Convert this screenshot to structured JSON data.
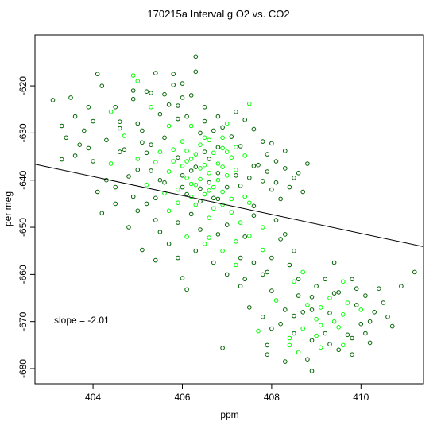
{
  "chart_data": {
    "type": "scatter",
    "title": "170215a   Interval g O2 vs. CO2",
    "xlabel": "ppm",
    "ylabel": "per meg",
    "xlim": [
      402.7,
      411.4
    ],
    "ylim": [
      -683.2,
      -609.2
    ],
    "x_ticks": [
      404,
      406,
      408,
      410
    ],
    "y_ticks": [
      -620,
      -630,
      -640,
      -650,
      -660,
      -670,
      -680
    ],
    "x_tick_labels": [
      "404",
      "406",
      "408",
      "410"
    ],
    "y_tick_labels": [
      "-620",
      "-630",
      "-640",
      "-650",
      "-660",
      "-670",
      "-680"
    ],
    "annotation": "slope =  -2.01",
    "fit_line": {
      "slope": -2.01,
      "intercept": 172.8
    },
    "grid": false,
    "legend": "none",
    "colors": {
      "dark": "#006400",
      "bright": "#00ff00",
      "line": "#000000"
    },
    "points": [
      [
        403.1,
        -623.0,
        0
      ],
      [
        403.3,
        -628.5,
        0
      ],
      [
        403.3,
        -635.6,
        0
      ],
      [
        403.5,
        -622.5,
        0
      ],
      [
        403.6,
        -634.8,
        0
      ],
      [
        403.7,
        -632.5,
        0
      ],
      [
        403.9,
        -633.2,
        0
      ],
      [
        404.0,
        -627.5,
        0
      ],
      [
        404.1,
        -617.5,
        0
      ],
      [
        404.3,
        -640.0,
        0
      ],
      [
        404.2,
        -647.0,
        0
      ],
      [
        404.5,
        -624.5,
        0
      ],
      [
        404.6,
        -627.6,
        0
      ],
      [
        404.7,
        -630.6,
        1
      ],
      [
        404.9,
        -617.8,
        1
      ],
      [
        404.9,
        -621.0,
        0
      ],
      [
        405.0,
        -628.0,
        0
      ],
      [
        405.1,
        -632.0,
        0
      ],
      [
        405.2,
        -621.2,
        0
      ],
      [
        405.3,
        -624.5,
        1
      ],
      [
        405.4,
        -617.3,
        0
      ],
      [
        405.5,
        -626.0,
        0
      ],
      [
        405.6,
        -621.8,
        0
      ],
      [
        405.7,
        -628.5,
        1
      ],
      [
        405.8,
        -619.8,
        0
      ],
      [
        405.9,
        -624.2,
        0
      ],
      [
        406.0,
        -622.5,
        0
      ],
      [
        406.1,
        -626.5,
        0
      ],
      [
        406.2,
        -628.5,
        1
      ],
      [
        406.3,
        -613.8,
        0
      ],
      [
        406.4,
        -630.0,
        0
      ],
      [
        406.5,
        -627.5,
        0
      ],
      [
        406.6,
        -631.5,
        1
      ],
      [
        406.7,
        -629.5,
        0
      ],
      [
        406.8,
        -633.0,
        0
      ],
      [
        406.9,
        -628.8,
        0
      ],
      [
        407.0,
        -634.0,
        1
      ],
      [
        407.1,
        -630.8,
        0
      ],
      [
        407.3,
        -632.8,
        0
      ],
      [
        407.4,
        -627.2,
        0
      ],
      [
        407.5,
        -623.8,
        1
      ],
      [
        407.6,
        -629.2,
        0
      ],
      [
        407.8,
        -631.8,
        0
      ],
      [
        407.9,
        -634.5,
        0
      ],
      [
        408.0,
        -632.2,
        0
      ],
      [
        408.1,
        -636.0,
        0
      ],
      [
        408.3,
        -633.8,
        0
      ],
      [
        408.6,
        -638.5,
        0
      ],
      [
        408.8,
        -636.5,
        0
      ],
      [
        405.0,
        -635.5,
        1
      ],
      [
        405.3,
        -638.0,
        0
      ],
      [
        405.5,
        -634.0,
        1
      ],
      [
        405.6,
        -640.5,
        0
      ],
      [
        405.8,
        -636.0,
        1
      ],
      [
        405.9,
        -642.0,
        1
      ],
      [
        406.0,
        -637.0,
        1
      ],
      [
        406.1,
        -639.5,
        1
      ],
      [
        406.2,
        -635.5,
        1
      ],
      [
        406.3,
        -641.0,
        1
      ],
      [
        406.4,
        -637.5,
        1
      ],
      [
        406.5,
        -643.0,
        1
      ],
      [
        406.6,
        -638.5,
        1
      ],
      [
        406.7,
        -641.5,
        1
      ],
      [
        406.8,
        -636.5,
        1
      ],
      [
        406.9,
        -642.5,
        1
      ],
      [
        407.0,
        -639.0,
        1
      ],
      [
        407.1,
        -644.0,
        1
      ],
      [
        407.2,
        -637.8,
        1
      ],
      [
        407.3,
        -641.2,
        0
      ],
      [
        407.4,
        -643.5,
        1
      ],
      [
        407.5,
        -639.5,
        0
      ],
      [
        407.6,
        -645.5,
        0
      ],
      [
        407.8,
        -640.2,
        0
      ],
      [
        408.0,
        -642.0,
        0
      ],
      [
        408.2,
        -644.0,
        0
      ],
      [
        408.4,
        -641.5,
        0
      ],
      [
        405.2,
        -645.0,
        0
      ],
      [
        405.4,
        -648.5,
        0
      ],
      [
        405.5,
        -651.0,
        0
      ],
      [
        405.7,
        -646.5,
        1
      ],
      [
        405.9,
        -649.0,
        0
      ],
      [
        406.1,
        -652.0,
        1
      ],
      [
        406.2,
        -647.2,
        0
      ],
      [
        406.4,
        -650.5,
        0
      ],
      [
        406.5,
        -653.5,
        1
      ],
      [
        406.6,
        -648.0,
        1
      ],
      [
        406.8,
        -651.5,
        0
      ],
      [
        406.9,
        -655.0,
        1
      ],
      [
        407.0,
        -649.5,
        0
      ],
      [
        407.2,
        -653.0,
        1
      ],
      [
        407.3,
        -656.5,
        0
      ],
      [
        407.5,
        -651.8,
        1
      ],
      [
        407.6,
        -657.5,
        0
      ],
      [
        407.8,
        -654.8,
        1
      ],
      [
        407.9,
        -659.5,
        0
      ],
      [
        408.0,
        -656.5,
        0
      ],
      [
        408.2,
        -652.5,
        0
      ],
      [
        408.4,
        -658.0,
        0
      ],
      [
        405.1,
        -654.8,
        0
      ],
      [
        404.8,
        -650.0,
        0
      ],
      [
        404.5,
        -641.5,
        0
      ],
      [
        404.4,
        -636.5,
        1
      ],
      [
        404.7,
        -633.5,
        0
      ],
      [
        404.9,
        -643.5,
        0
      ],
      [
        406.0,
        -660.8,
        0
      ],
      [
        406.1,
        -663.2,
        0
      ],
      [
        406.9,
        -675.6,
        0
      ],
      [
        407.5,
        -667.0,
        0
      ],
      [
        407.7,
        -672.0,
        1
      ],
      [
        407.8,
        -669.0,
        0
      ],
      [
        407.9,
        -675.0,
        0
      ],
      [
        408.0,
        -663.5,
        0
      ],
      [
        408.1,
        -665.5,
        1
      ],
      [
        408.2,
        -670.5,
        0
      ],
      [
        408.3,
        -667.5,
        0
      ],
      [
        408.4,
        -673.5,
        1
      ],
      [
        408.5,
        -661.5,
        1
      ],
      [
        408.5,
        -668.8,
        0
      ],
      [
        408.6,
        -664.5,
        0
      ],
      [
        408.7,
        -671.5,
        1
      ],
      [
        408.8,
        -666.5,
        1
      ],
      [
        408.9,
        -674.0,
        0
      ],
      [
        409.0,
        -669.5,
        1
      ],
      [
        409.0,
        -662.5,
        0
      ],
      [
        409.1,
        -667.0,
        1
      ],
      [
        409.2,
        -672.5,
        0
      ],
      [
        409.3,
        -665.0,
        1
      ],
      [
        409.4,
        -670.0,
        1
      ],
      [
        409.5,
        -663.8,
        0
      ],
      [
        409.5,
        -676.0,
        0
      ],
      [
        409.6,
        -668.5,
        1
      ],
      [
        409.7,
        -672.8,
        0
      ],
      [
        409.8,
        -661.0,
        0
      ],
      [
        409.9,
        -666.5,
        0
      ],
      [
        410.0,
        -670.5,
        0
      ],
      [
        410.1,
        -664.5,
        0
      ],
      [
        410.2,
        -674.5,
        0
      ],
      [
        410.3,
        -668.0,
        0
      ],
      [
        410.5,
        -666.0,
        0
      ],
      [
        410.7,
        -671.0,
        0
      ],
      [
        410.9,
        -662.5,
        0
      ],
      [
        411.2,
        -659.5,
        0
      ],
      [
        408.6,
        -676.5,
        1
      ],
      [
        408.8,
        -678.0,
        0
      ],
      [
        408.3,
        -678.5,
        0
      ],
      [
        408.9,
        -680.5,
        0
      ],
      [
        409.1,
        -675.5,
        1
      ],
      [
        409.3,
        -674.8,
        0
      ],
      [
        408.4,
        -675.0,
        1
      ],
      [
        407.9,
        -677.0,
        0
      ],
      [
        408.0,
        -671.5,
        0
      ],
      [
        409.6,
        -661.5,
        1
      ],
      [
        409.2,
        -661.0,
        0
      ],
      [
        408.7,
        -659.5,
        1
      ],
      [
        407.8,
        -660.0,
        0
      ],
      [
        407.4,
        -661.0,
        0
      ],
      [
        409.8,
        -677.0,
        0
      ],
      [
        410.4,
        -663.0,
        0
      ],
      [
        410.6,
        -669.0,
        0
      ],
      [
        409.4,
        -657.5,
        0
      ],
      [
        406.1,
        -636.0,
        1
      ],
      [
        406.3,
        -634.5,
        1
      ],
      [
        406.5,
        -636.8,
        1
      ],
      [
        406.7,
        -634.2,
        1
      ],
      [
        406.9,
        -637.2,
        1
      ],
      [
        406.4,
        -639.8,
        1
      ],
      [
        406.6,
        -642.2,
        1
      ],
      [
        406.2,
        -643.5,
        1
      ],
      [
        406.8,
        -640.0,
        1
      ],
      [
        407.1,
        -635.2,
        1
      ],
      [
        405.8,
        -633.5,
        1
      ],
      [
        406.0,
        -631.8,
        1
      ],
      [
        406.4,
        -632.5,
        1
      ],
      [
        406.9,
        -631.0,
        1
      ],
      [
        407.2,
        -633.0,
        1
      ],
      [
        405.7,
        -638.2,
        1
      ],
      [
        406.3,
        -645.2,
        1
      ],
      [
        406.7,
        -646.0,
        1
      ],
      [
        406.0,
        -641.5,
        0
      ],
      [
        406.5,
        -634.0,
        0
      ],
      [
        406.2,
        -638.0,
        0
      ],
      [
        406.8,
        -644.0,
        0
      ],
      [
        407.0,
        -641.5,
        0
      ],
      [
        405.9,
        -635.2,
        0
      ],
      [
        406.1,
        -643.0,
        0
      ],
      [
        406.6,
        -640.5,
        0
      ],
      [
        407.2,
        -639.0,
        0
      ],
      [
        406.4,
        -644.5,
        0
      ],
      [
        405.5,
        -640.0,
        0
      ],
      [
        405.3,
        -632.5,
        0
      ],
      [
        404.6,
        -634.0,
        0
      ],
      [
        404.8,
        -639.2,
        0
      ],
      [
        404.3,
        -631.5,
        0
      ],
      [
        404.0,
        -636.0,
        0
      ],
      [
        403.8,
        -629.5,
        0
      ],
      [
        403.9,
        -624.5,
        0
      ],
      [
        404.2,
        -620.0,
        0
      ],
      [
        404.4,
        -625.5,
        1
      ],
      [
        404.6,
        -629.0,
        0
      ],
      [
        404.1,
        -642.5,
        0
      ],
      [
        405.0,
        -646.5,
        0
      ],
      [
        405.2,
        -641.0,
        1
      ],
      [
        405.4,
        -643.8,
        0
      ],
      [
        405.1,
        -629.5,
        0
      ],
      [
        405.6,
        -631.0,
        0
      ],
      [
        405.7,
        -624.0,
        0
      ],
      [
        405.9,
        -627.0,
        0
      ],
      [
        406.0,
        -619.5,
        0
      ],
      [
        406.2,
        -622.0,
        0
      ],
      [
        406.5,
        -624.5,
        0
      ],
      [
        406.8,
        -626.5,
        0
      ],
      [
        407.0,
        -628.0,
        1
      ],
      [
        407.2,
        -625.5,
        0
      ],
      [
        407.7,
        -636.8,
        0
      ],
      [
        407.9,
        -638.2,
        0
      ],
      [
        408.1,
        -640.5,
        0
      ],
      [
        408.3,
        -637.5,
        0
      ],
      [
        408.5,
        -639.5,
        0
      ],
      [
        408.7,
        -642.5,
        0
      ],
      [
        407.6,
        -647.5,
        0
      ],
      [
        407.8,
        -650.0,
        1
      ],
      [
        408.1,
        -648.5,
        0
      ],
      [
        408.3,
        -651.5,
        0
      ],
      [
        407.4,
        -652.0,
        0
      ],
      [
        407.2,
        -658.0,
        1
      ],
      [
        407.0,
        -660.0,
        0
      ],
      [
        407.3,
        -662.5,
        0
      ],
      [
        408.5,
        -655.0,
        0
      ],
      [
        408.6,
        -661.0,
        0
      ],
      [
        405.3,
        -621.5,
        0
      ],
      [
        405.8,
        -617.5,
        0
      ],
      [
        405.0,
        -619.0,
        1
      ],
      [
        406.3,
        -617.0,
        0
      ],
      [
        404.9,
        -622.8,
        0
      ],
      [
        403.6,
        -626.5,
        0
      ],
      [
        403.4,
        -631.0,
        0
      ],
      [
        404.5,
        -645.0,
        0
      ],
      [
        405.7,
        -653.5,
        0
      ],
      [
        405.9,
        -656.5,
        0
      ],
      [
        406.3,
        -655.0,
        0
      ],
      [
        406.7,
        -657.5,
        0
      ],
      [
        406.6,
        -652.2,
        1
      ],
      [
        405.4,
        -657.0,
        0
      ],
      [
        407.1,
        -646.8,
        1
      ],
      [
        407.3,
        -649.0,
        1
      ],
      [
        407.5,
        -644.8,
        1
      ],
      [
        407.6,
        -637.0,
        0
      ],
      [
        407.4,
        -634.8,
        1
      ],
      [
        406.9,
        -633.2,
        1
      ],
      [
        406.5,
        -631.0,
        1
      ],
      [
        406.1,
        -633.8,
        1
      ],
      [
        406.8,
        -638.5,
        0
      ],
      [
        406.3,
        -637.2,
        0
      ],
      [
        406.6,
        -635.5,
        0
      ],
      [
        406.0,
        -639.0,
        0
      ],
      [
        406.4,
        -641.8,
        0
      ],
      [
        406.7,
        -643.8,
        0
      ],
      [
        406.2,
        -640.8,
        1
      ],
      [
        406.9,
        -645.2,
        1
      ],
      [
        405.9,
        -644.8,
        1
      ],
      [
        405.6,
        -642.8,
        1
      ],
      [
        405.4,
        -636.2,
        1
      ],
      [
        405.2,
        -634.2,
        0
      ],
      [
        405.0,
        -637.8,
        0
      ],
      [
        408.9,
        -667.5,
        0
      ],
      [
        409.1,
        -670.8,
        1
      ],
      [
        409.3,
        -668.2,
        0
      ],
      [
        409.5,
        -671.2,
        1
      ],
      [
        409.7,
        -666.0,
        1
      ],
      [
        409.0,
        -673.0,
        1
      ],
      [
        408.7,
        -668.0,
        0
      ],
      [
        408.5,
        -672.5,
        0
      ],
      [
        409.8,
        -673.5,
        0
      ],
      [
        410.0,
        -667.5,
        1
      ],
      [
        410.2,
        -670.0,
        0
      ],
      [
        409.4,
        -664.0,
        0
      ],
      [
        408.9,
        -664.8,
        0
      ],
      [
        409.6,
        -675.0,
        1
      ],
      [
        409.9,
        -663.0,
        0
      ],
      [
        410.1,
        -672.5,
        0
      ]
    ]
  }
}
